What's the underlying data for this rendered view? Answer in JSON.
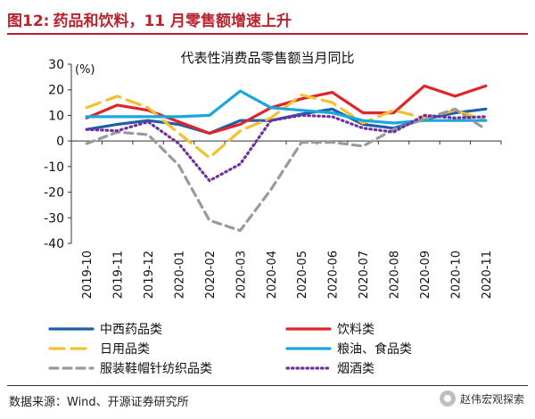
{
  "header": {
    "figure_label": "图12:",
    "title": "药品和饮料，11 月零售额增速上升"
  },
  "chart_data": {
    "type": "line",
    "title": "代表性消费品零售额当月同比",
    "ylabel": "(%)",
    "ylim": [
      -40,
      30
    ],
    "yticks": [
      30,
      20,
      10,
      0,
      -10,
      -20,
      -30,
      -40
    ],
    "grid": false,
    "legend_position": "bottom",
    "categories": [
      "2019-10",
      "2019-11",
      "2019-12",
      "2020-01",
      "2020-02",
      "2020-03",
      "2020-04",
      "2020-05",
      "2020-06",
      "2020-07",
      "2020-08",
      "2020-09",
      "2020-10",
      "2020-11"
    ],
    "series": [
      {
        "name": "中西药品类",
        "color": "#1f5fa8",
        "dash": "solid",
        "values": [
          4.5,
          6.5,
          8,
          6.5,
          3,
          8,
          8,
          10.5,
          12.5,
          6.5,
          5,
          8.5,
          11,
          12.5
        ]
      },
      {
        "name": "饮料类",
        "color": "#e0242a",
        "dash": "solid",
        "values": [
          9,
          14,
          12,
          7.5,
          3,
          6.5,
          13,
          16.5,
          19,
          11,
          11,
          21.5,
          17.5,
          21.5
        ]
      },
      {
        "name": "日用品类",
        "color": "#f5c030",
        "dash": "longdash",
        "values": [
          13,
          17.5,
          13,
          3,
          -6.5,
          4,
          9,
          18,
          15,
          7,
          12,
          9,
          12,
          8
        ]
      },
      {
        "name": "粮油、食品类",
        "color": "#1aa7e0",
        "dash": "solid",
        "values": [
          9.5,
          9.5,
          9.5,
          9.5,
          10,
          19.5,
          13,
          12,
          11,
          8,
          7,
          8,
          8,
          8
        ]
      },
      {
        "name": "服装鞋帽针纺织品类",
        "color": "#9a9a9a",
        "dash": "dash",
        "values": [
          -1,
          3.5,
          2.5,
          -9.5,
          -31,
          -35,
          -19,
          -0.5,
          -0.5,
          -2,
          4.5,
          8.5,
          12.5,
          4.5
        ]
      },
      {
        "name": "烟酒类",
        "color": "#7030a0",
        "dash": "dot",
        "values": [
          4.5,
          4,
          7.5,
          -1,
          -15.5,
          -9,
          8,
          10,
          9.5,
          5,
          3.5,
          10,
          9,
          9.5
        ]
      }
    ]
  },
  "footer": {
    "source": "数据来源：Wind、开源证券研究所",
    "watermark": "赵伟宏观探索"
  }
}
